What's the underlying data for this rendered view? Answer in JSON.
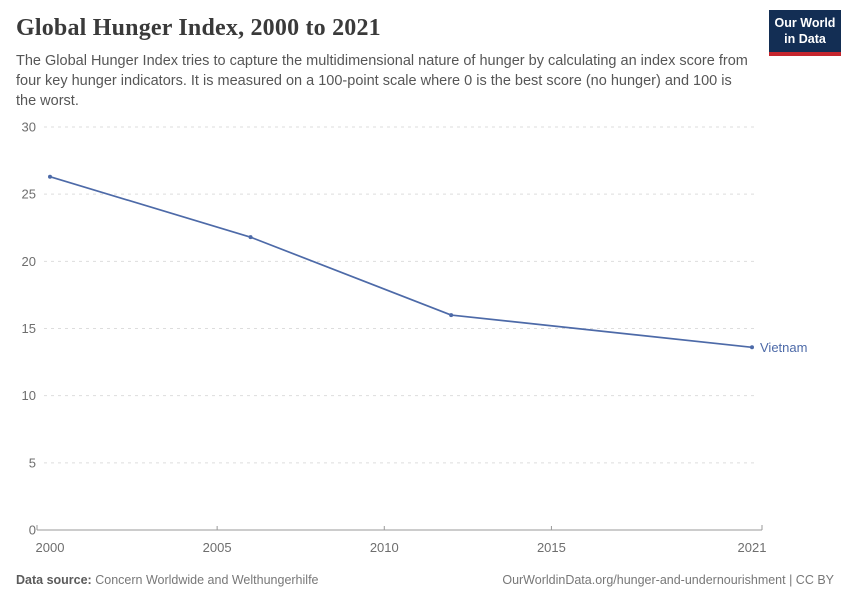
{
  "chart_data": {
    "type": "line",
    "title": "Global Hunger Index, 2000 to 2021",
    "subtitle": "The Global Hunger Index tries to capture the multidimensional nature of hunger by calculating an index score from four key hunger indicators. It is measured on a 100-point scale where 0 is the best score (no hunger) and 100 is the worst.",
    "xlabel": "",
    "ylabel": "",
    "xlim": [
      2000,
      2021
    ],
    "ylim": [
      0,
      30
    ],
    "x_ticks": [
      2000,
      2005,
      2010,
      2015,
      2021
    ],
    "y_ticks": [
      0,
      5,
      10,
      15,
      20,
      25,
      30
    ],
    "grid": "horizontal-dashed",
    "legend_position": "end-of-line-label",
    "series": [
      {
        "name": "Vietnam",
        "color": "#4d6aa8",
        "points": [
          {
            "year": 2000,
            "value": 26.3
          },
          {
            "year": 2006,
            "value": 21.8
          },
          {
            "year": 2012,
            "value": 16.0
          },
          {
            "year": 2021,
            "value": 13.6
          }
        ]
      }
    ]
  },
  "header": {
    "logo_line1": "Our World",
    "logo_line2": "in Data",
    "logo_bg": "#132e54",
    "logo_accent": "#c6262e"
  },
  "footer": {
    "source_label": "Data source:",
    "source_value": "Concern Worldwide and Welthungerhilfe",
    "attribution": "OurWorldinData.org/hunger-and-undernourishment | CC BY"
  },
  "colors": {
    "line": "#4d6aa8",
    "title_text": "#3a3a3a",
    "subtitle_text": "#565656",
    "tick_text": "#6e6e6e",
    "gridline": "#dddddd",
    "axis": "#999999",
    "footer_text": "#787878"
  }
}
